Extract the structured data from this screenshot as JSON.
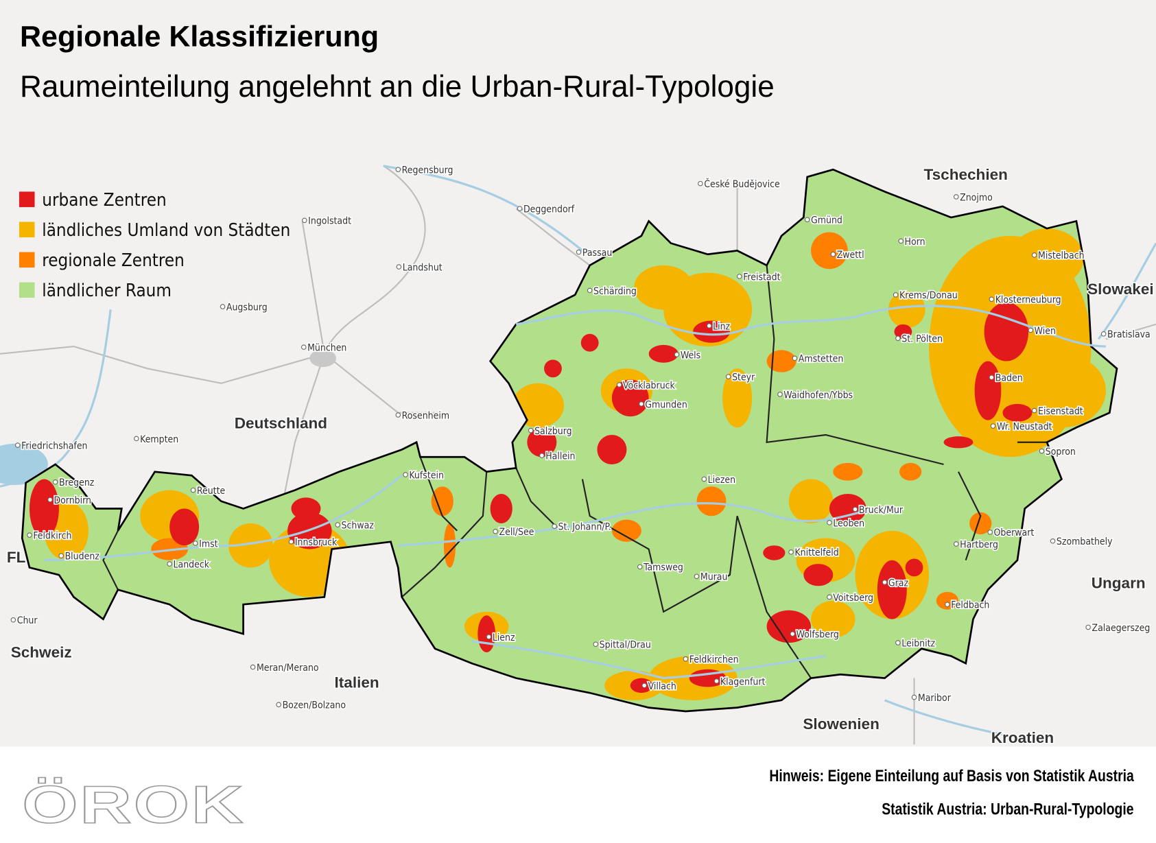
{
  "header": {
    "title": "Regionale Klassifizierung",
    "subtitle": "Raumeinteilung angelehnt an die Urban-Rural-Typologie"
  },
  "legend": [
    {
      "label": "urbane Zentren",
      "color": "#e31a1c"
    },
    {
      "label": "ländliches Umland von Städten",
      "color": "#f5b400"
    },
    {
      "label": "regionale Zentren",
      "color": "#ff7f00"
    },
    {
      "label": "ländlicher Raum",
      "color": "#b2df8a"
    }
  ],
  "countries": [
    "Tschechien",
    "Slowakei",
    "Deutschland",
    "Ungarn",
    "Schweiz",
    "Italien",
    "Slowenien",
    "Kroatien",
    "FL"
  ],
  "foreign_cities": [
    "Regensburg",
    "Deggendorf",
    "Ingolstadt",
    "Landshut",
    "Passau",
    "České Budějovice",
    "Znojmo",
    "München",
    "Augsburg",
    "Rosenheim",
    "Kempten",
    "Friedrichshafen",
    "Chur",
    "Meran/Merano",
    "Bozen/Bolzano",
    "Maribor",
    "Bratislava",
    "Sopron",
    "Szombathely",
    "Zalaegerszeg"
  ],
  "austrian_cities": [
    "Gmünd",
    "Horn",
    "Zwettl",
    "Mistelbach",
    "Freistadt",
    "Schärding",
    "Krems/Donau",
    "Klosterneuburg",
    "Linz",
    "Wien",
    "St. Pölten",
    "Wels",
    "Amstetten",
    "Steyr",
    "Baden",
    "Vöcklabruck",
    "Waidhofen/Ybbs",
    "Gmunden",
    "Eisenstadt",
    "Wr. Neustadt",
    "Salzburg",
    "Hallein",
    "Kufstein",
    "Liezen",
    "Bregenz",
    "Reutte",
    "Dornbirn",
    "Bruck/Mur",
    "Schwaz",
    "Leoben",
    "Zell/See",
    "St. Johann/P.",
    "Oberwart",
    "Feldkirch",
    "Imst",
    "Innsbruck",
    "Hartberg",
    "Knittelfeld",
    "Bludenz",
    "Landeck",
    "Tamsweg",
    "Murau",
    "Graz",
    "Voitsberg",
    "Feldbach",
    "Lienz",
    "Wolfsberg",
    "Leibnitz",
    "Spittal/Drau",
    "Feldkirchen",
    "Klagenfurt",
    "Villach"
  ],
  "footer": {
    "logo": "ÖROK",
    "note1": "Hinweis: Eigene Einteilung auf Basis von Statistik Austria",
    "note2": "Statistik Austria: Urban-Rural-Typologie"
  },
  "colors": {
    "background": "#f2f1ef",
    "river": "#a6cee3",
    "road": "#bdbdbd",
    "border": "#000000"
  }
}
